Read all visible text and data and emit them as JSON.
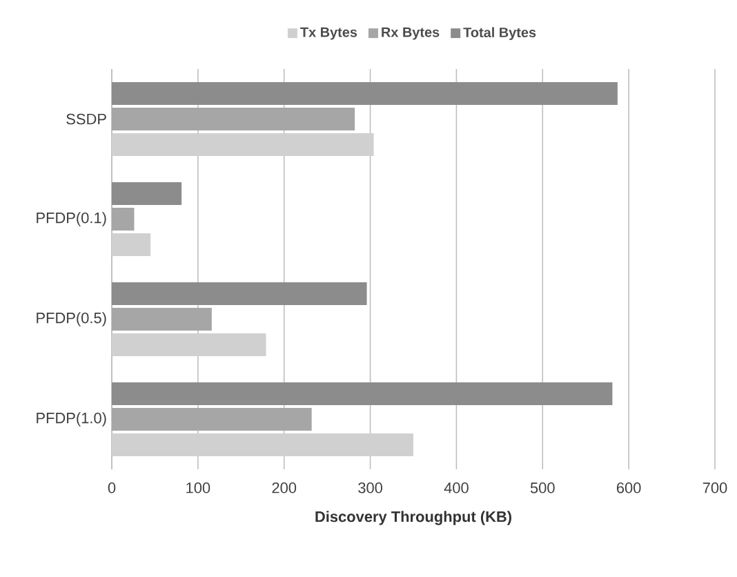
{
  "chart_data": {
    "type": "bar",
    "orientation": "horizontal",
    "categories": [
      "SSDP",
      "PFDP(0.1)",
      "PFDP(0.5)",
      "PFDP(1.0)"
    ],
    "series": [
      {
        "name": "Tx Bytes",
        "color": "#d0d0d0",
        "values": [
          304,
          45,
          179,
          350
        ]
      },
      {
        "name": "Rx Bytes",
        "color": "#a6a6a6",
        "values": [
          282,
          26,
          116,
          232
        ]
      },
      {
        "name": "Total Bytes",
        "color": "#8c8c8c",
        "values": [
          587,
          81,
          296,
          581
        ]
      }
    ],
    "xlim": [
      0,
      700
    ],
    "xticks": [
      0,
      100,
      200,
      300,
      400,
      500,
      600,
      700
    ],
    "xlabel": "Discovery Throughput (KB)",
    "grid": "x",
    "legend": "top"
  }
}
